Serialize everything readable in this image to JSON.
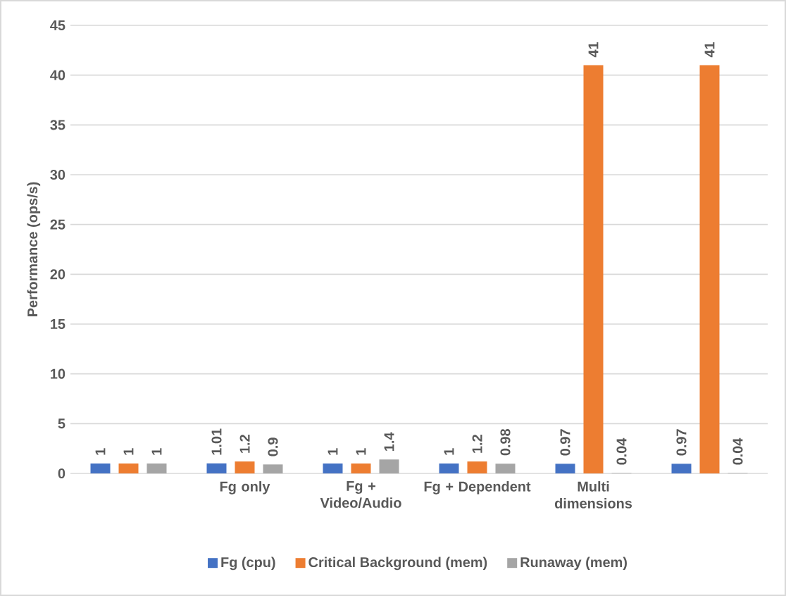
{
  "chart_data": {
    "type": "bar",
    "ylabel": "Performance (ops/s)",
    "categories": [
      null,
      "Fg only",
      "Fg + Video/Audio",
      "Fg + Dependent",
      "Multi dimensions",
      null
    ],
    "series": [
      {
        "name": "Fg (cpu)",
        "color": "#4472c4",
        "values": [
          1,
          1.01,
          1,
          1,
          0.97,
          0.97
        ]
      },
      {
        "name": "Critical Background (mem)",
        "color": "#ed7d31",
        "values": [
          1,
          1.2,
          1,
          1.2,
          41,
          41
        ]
      },
      {
        "name": "Runaway (mem)",
        "color": "#a5a5a5",
        "values": [
          1,
          0.9,
          1.4,
          0.98,
          0.04,
          0.04
        ]
      }
    ],
    "ylim": [
      0,
      45
    ],
    "yticks": [
      0,
      5,
      10,
      15,
      20,
      25,
      30,
      35,
      40,
      45
    ],
    "grid": "y",
    "legend": "bottom",
    "data_labels": true
  }
}
